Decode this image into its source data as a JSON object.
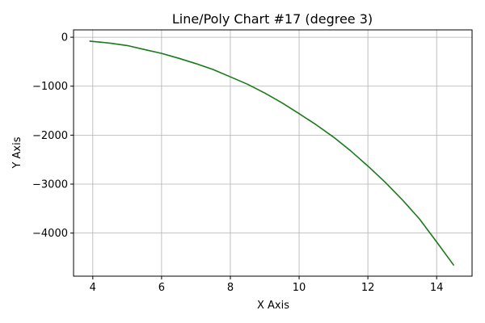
{
  "chart_data": {
    "type": "line",
    "title": "Line/Poly Chart #17 (degree 3)",
    "xlabel": "X Axis",
    "ylabel": "Y Axis",
    "xlim": [
      3.44,
      15.03
    ],
    "ylim": [
      -4880,
      150
    ],
    "xticks": [
      4,
      6,
      8,
      10,
      12,
      14
    ],
    "yticks": [
      0,
      -1000,
      -2000,
      -3000,
      -4000
    ],
    "xtick_labels": [
      "4",
      "6",
      "8",
      "10",
      "12",
      14
    ],
    "ytick_labels": [
      "0",
      "−1000",
      "−2000",
      "−3000",
      "−4000"
    ],
    "grid": true,
    "series": [
      {
        "color": "#1a7a1a",
        "x": [
          3.9,
          4.5,
          5.0,
          5.5,
          6.0,
          6.5,
          7.0,
          7.5,
          8.0,
          8.5,
          9.0,
          9.5,
          10.0,
          10.5,
          11.0,
          11.5,
          12.0,
          12.5,
          13.0,
          13.5,
          14.0,
          14.5
        ],
        "y": [
          -80,
          -120,
          -170,
          -250,
          -330,
          -430,
          -540,
          -660,
          -810,
          -960,
          -1140,
          -1340,
          -1560,
          -1790,
          -2040,
          -2320,
          -2630,
          -2960,
          -3320,
          -3710,
          -4180,
          -4660
        ]
      }
    ]
  }
}
